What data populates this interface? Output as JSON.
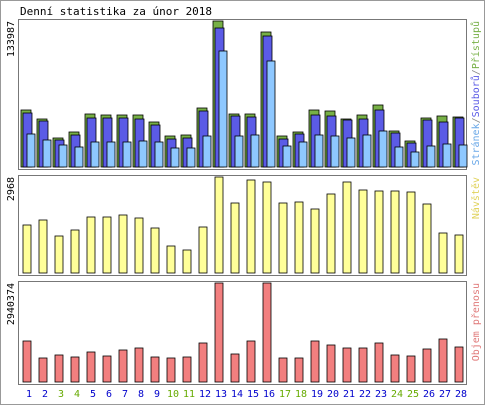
{
  "title": "Denní statistika za únor 2018",
  "colors": {
    "hits": "#77b046",
    "files": "#5b5be6",
    "pages": "#8ec8ff",
    "visits": "#ffff99",
    "kbytes": "#f27f7f",
    "weekend_label": "#66aa00",
    "weekday_label": "#0000cc"
  },
  "chart_data": [
    {
      "type": "bar",
      "title": "Denní statistika za únor 2018",
      "categories": [
        "1",
        "2",
        "3",
        "4",
        "5",
        "6",
        "7",
        "8",
        "9",
        "10",
        "11",
        "12",
        "13",
        "14",
        "15",
        "16",
        "17",
        "18",
        "19",
        "20",
        "21",
        "22",
        "23",
        "24",
        "25",
        "26",
        "27",
        "28"
      ],
      "weekend_days": [
        "3",
        "4",
        "10",
        "11",
        "17",
        "18",
        "24",
        "25"
      ],
      "ymax_label": "133987",
      "legend": [
        {
          "text": "Stránek",
          "color": "#8ec8ff"
        },
        {
          "text": "/",
          "color": "#888888"
        },
        {
          "text": "Souborů",
          "color": "#5b5be6"
        },
        {
          "text": "/",
          "color": "#888888"
        },
        {
          "text": "Přístupů",
          "color": "#77b046"
        }
      ],
      "ylim": [
        0,
        133987
      ],
      "series": [
        {
          "name": "Přístupů",
          "values": [
            52000,
            44000,
            27000,
            32000,
            49000,
            48000,
            48000,
            48000,
            41000,
            28000,
            29000,
            54000,
            133987,
            49000,
            49000,
            124000,
            28000,
            32000,
            52000,
            51000,
            44000,
            48000,
            57000,
            33000,
            24000,
            45000,
            47000,
            46000
          ]
        },
        {
          "name": "Souborů",
          "values": [
            50000,
            42000,
            25000,
            29000,
            45000,
            45000,
            45000,
            44000,
            39000,
            26000,
            27000,
            51000,
            128000,
            47000,
            46000,
            120000,
            26000,
            30000,
            48000,
            47000,
            43000,
            44000,
            52000,
            31000,
            22000,
            43000,
            41000,
            45000
          ]
        },
        {
          "name": "Stránek",
          "values": [
            30000,
            25000,
            20000,
            18000,
            23000,
            23000,
            23000,
            24000,
            23000,
            17000,
            17000,
            28000,
            106000,
            28000,
            29000,
            97000,
            19000,
            23000,
            29000,
            28000,
            27000,
            29000,
            33000,
            18000,
            14000,
            19000,
            21000,
            20000
          ]
        }
      ]
    },
    {
      "type": "bar",
      "ymax_label": "2968",
      "legend": [
        {
          "text": "Návštěv",
          "color": "#ffff99"
        }
      ],
      "ylim": [
        0,
        2968
      ],
      "series": [
        {
          "name": "Návštěv",
          "values": [
            1480,
            1640,
            1150,
            1330,
            1740,
            1740,
            1790,
            1710,
            1380,
            820,
            710,
            1420,
            2968,
            2170,
            2880,
            2800,
            2160,
            2200,
            1970,
            2440,
            2800,
            2560,
            2550,
            2550,
            2510,
            2140,
            1230,
            1170
          ]
        }
      ]
    },
    {
      "type": "bar",
      "ymax_label": "2940374",
      "legend": [
        {
          "text": "Objem přenosu",
          "color": "#f27f7f"
        }
      ],
      "ylim": [
        0,
        2940374
      ],
      "series": [
        {
          "name": "Objem přenosu",
          "values": [
            1220000,
            710000,
            790000,
            740000,
            890000,
            780000,
            940000,
            1000000,
            740000,
            710000,
            740000,
            1170000,
            2940374,
            840000,
            1210000,
            2940374,
            710000,
            710000,
            1210000,
            1100000,
            1000000,
            1020000,
            1170000,
            790000,
            780000,
            970000,
            1290000,
            1050000
          ]
        }
      ]
    }
  ]
}
